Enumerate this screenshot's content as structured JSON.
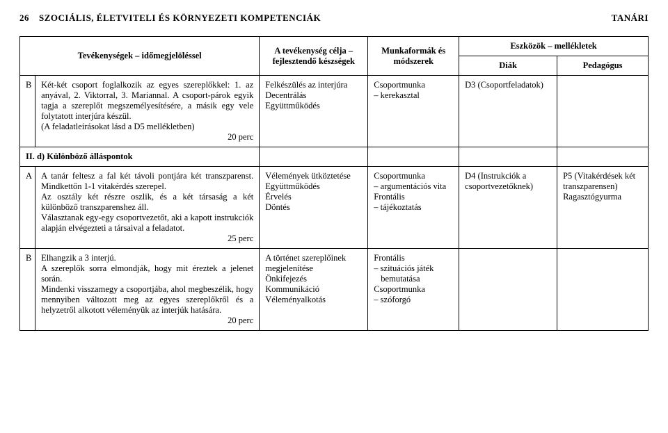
{
  "header": {
    "page_number": "26",
    "title_left": "SZOCIÁLIS, ÉLETVITELI ÉS KÖRNYEZETI KOMPETENCIÁK",
    "title_right": "TANÁRI"
  },
  "table": {
    "head": {
      "activities": "Tevékenységek – időmegjelöléssel",
      "goals": "A tevékenység célja – fejlesztendő készségek",
      "methods": "Munkaformák és módszerek",
      "tools": "Eszközök – mellékletek",
      "tool_student": "Diák",
      "tool_teacher": "Pedagógus"
    },
    "rows": [
      {
        "letter": "B",
        "activity_html": "Két-két csoport foglalkozik az egyes szereplőkkel: 1. az anyával, 2. Viktorral, 3. Mariannal. A csoport-párok egyik tagja a szereplőt megszemélyesítésére, a másik egy vele folytatott interjúra készül.\n(A feladatleírásokat lásd a D5 mellékletben)",
        "time": "20 perc",
        "goal": "Felkészülés az interjúra\nDecentrálás\nEgyüttműködés",
        "method_items": [
          "Csoportmunka",
          "– kerekasztal"
        ],
        "tool_student": "D3 (Csoportfeladatok)",
        "tool_teacher": ""
      },
      {
        "section": "II. d) Különböző álláspontok"
      },
      {
        "letter": "A",
        "activity_html": "A tanár feltesz a fal két távoli pontjára két transzparenst. Mindkettőn 1-1 vitakérdés szerepel.\nAz osztály két részre oszlik, és a két társaság a két különböző transzparenshez áll.\nVálasztanak egy-egy csoportvezetőt, aki a kapott instrukciók alapján elvégezteti a társaival a feladatot.",
        "time": "25 perc",
        "goal": "Vélemények ütköztetése\nEgyüttműködés\nÉrvelés\nDöntés",
        "method_items": [
          "Csoportmunka",
          "– argumentációs vita",
          "Frontális",
          "– tájékoztatás"
        ],
        "tool_student": "D4 (Instrukciók a csoportvezetőknek)",
        "tool_teacher": "P5 (Vitakérdések két transzparensen)\nRagasztógyurma"
      },
      {
        "letter": "B",
        "activity_html": "Elhangzik a 3 interjú.\nA szereplők sorra elmondják, hogy mit éreztek a jelenet során.\nMindenki visszamegy a csoportjába, ahol megbeszélik, hogy mennyiben változott meg az egyes szereplőkről és a helyzetről alkotott véleményük az interjúk hatására.",
        "time": "20 perc",
        "goal": "A történet szereplőinek megjelenítése\nÖnkifejezés\nKommunikáció\nVéleményalkotás",
        "method_items": [
          "Frontális",
          "– szituációs játék bemutatása",
          "Csoportmunka",
          "– szóforgó"
        ],
        "tool_student": "",
        "tool_teacher": ""
      }
    ]
  }
}
